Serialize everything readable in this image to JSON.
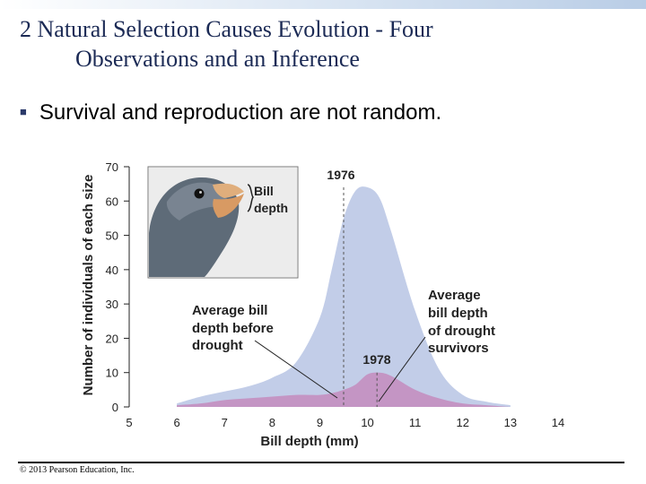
{
  "slide": {
    "title_line1": "2 Natural Selection Causes Evolution - Four",
    "title_line2": "Observations and an Inference",
    "bullet": "Survival and reproduction are not random.",
    "copyright": "© 2013 Pearson Education, Inc."
  },
  "inset": {
    "label_line1": "Bill",
    "label_line2": "depth"
  },
  "chart_data": {
    "type": "area",
    "xlabel": "Bill depth (mm)",
    "ylabel": "Number of individuals of each size",
    "xlim": [
      5,
      14
    ],
    "ylim": [
      0,
      70
    ],
    "x_ticks": [
      5,
      6,
      7,
      8,
      9,
      10,
      11,
      12,
      13,
      14
    ],
    "y_ticks": [
      0,
      10,
      20,
      30,
      40,
      50,
      60,
      70
    ],
    "x": [
      6,
      6.5,
      7,
      7.5,
      8,
      8.5,
      9,
      9.25,
      9.5,
      9.75,
      10,
      10.25,
      10.5,
      11,
      11.5,
      12,
      12.5,
      13
    ],
    "series": [
      {
        "name": "1976",
        "color": "#c2cde8",
        "values": [
          1,
          3,
          4.5,
          6,
          8.5,
          13,
          26,
          40,
          55,
          63,
          64,
          61,
          51,
          28,
          11,
          3.5,
          1.5,
          0.5
        ]
      },
      {
        "name": "1978",
        "color": "#c48dbe",
        "values": [
          0.5,
          1,
          2,
          2.5,
          3,
          3.5,
          3.5,
          4,
          5,
          6.5,
          9.5,
          10,
          9,
          5,
          2.5,
          1,
          0.5,
          0
        ]
      }
    ],
    "markers": [
      {
        "x": 9.5,
        "label": "Average bill depth before drought",
        "line1": "Average bill",
        "line2": "depth before",
        "line3": "drought"
      },
      {
        "x": 10.2,
        "label": "Average bill depth of drought survivors",
        "line1": "Average",
        "line2": "bill depth",
        "line3": "of drought",
        "line4": "survivors"
      }
    ],
    "series_labels": [
      "1976",
      "1978"
    ]
  }
}
